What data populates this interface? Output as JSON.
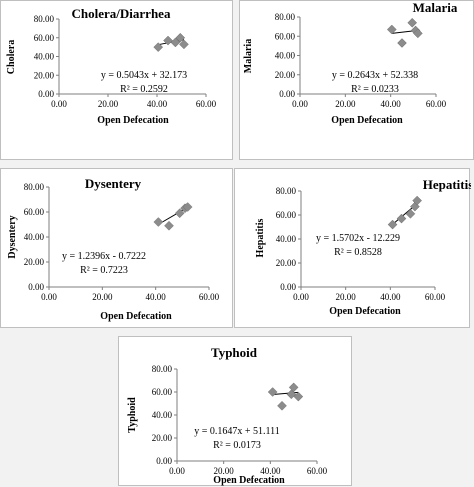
{
  "chart_data": [
    {
      "type": "scatter",
      "title": "Cholera/Diarrhea",
      "xlabel": "Open Defecation",
      "ylabel": "Cholera",
      "xlim": [
        0,
        60
      ],
      "ylim": [
        0,
        80
      ],
      "xticks": [
        "0.00",
        "20.00",
        "40.00",
        "60.00"
      ],
      "yticks": [
        "0.00",
        "20.00",
        "40.00",
        "60.00",
        "80.00"
      ],
      "points": [
        {
          "x": 40.5,
          "y": 50
        },
        {
          "x": 44.5,
          "y": 57
        },
        {
          "x": 47.5,
          "y": 55
        },
        {
          "x": 49.5,
          "y": 60
        },
        {
          "x": 51,
          "y": 53
        }
      ],
      "trendline": {
        "slope": 0.5043,
        "intercept": 32.173,
        "x_range": [
          40.5,
          51
        ]
      },
      "equation": "y = 0.5043x + 32.173",
      "r2": "R² = 0.2592"
    },
    {
      "type": "scatter",
      "title": "Malaria",
      "xlabel": "Open Defecation",
      "ylabel": "Malaria",
      "xlim": [
        0,
        60
      ],
      "ylim": [
        0,
        80
      ],
      "xticks": [
        "0.00",
        "20.00",
        "40.00",
        "60.00"
      ],
      "yticks": [
        "0.00",
        "20.00",
        "40.00",
        "60.00",
        "80.00"
      ],
      "points": [
        {
          "x": 40.5,
          "y": 67
        },
        {
          "x": 45,
          "y": 53
        },
        {
          "x": 49.5,
          "y": 74
        },
        {
          "x": 51,
          "y": 66
        },
        {
          "x": 52,
          "y": 63
        }
      ],
      "trendline": {
        "slope": 0.2643,
        "intercept": 52.338,
        "x_range": [
          40.5,
          52
        ]
      },
      "equation": "y = 0.2643x + 52.338",
      "r2": "R² = 0.0233"
    },
    {
      "type": "scatter",
      "title": "Dysentery",
      "xlabel": "Open Defecation",
      "ylabel": "Dysentery",
      "xlim": [
        0,
        60
      ],
      "ylim": [
        0,
        80
      ],
      "xticks": [
        "0.00",
        "20.00",
        "40.00",
        "60.00"
      ],
      "yticks": [
        "0.00",
        "20.00",
        "40.00",
        "60.00",
        "80.00"
      ],
      "points": [
        {
          "x": 41,
          "y": 52
        },
        {
          "x": 45,
          "y": 49
        },
        {
          "x": 49,
          "y": 59
        },
        {
          "x": 51,
          "y": 63
        },
        {
          "x": 52,
          "y": 64
        }
      ],
      "trendline": {
        "slope": 1.2396,
        "intercept": -0.7222,
        "x_range": [
          41,
          52
        ]
      },
      "equation": "y = 1.2396x - 0.7222",
      "r2": "R² = 0.7223"
    },
    {
      "type": "scatter",
      "title": "Hepatitis",
      "xlabel": "Open Defecation",
      "ylabel": "Hepatitis",
      "xlim": [
        0,
        60
      ],
      "ylim": [
        0,
        80
      ],
      "xticks": [
        "0.00",
        "20.00",
        "40.00",
        "60.00"
      ],
      "yticks": [
        "0.00",
        "20.00",
        "40.00",
        "60.00",
        "80.00"
      ],
      "points": [
        {
          "x": 41,
          "y": 52
        },
        {
          "x": 45,
          "y": 57
        },
        {
          "x": 49,
          "y": 61
        },
        {
          "x": 51,
          "y": 67
        },
        {
          "x": 52,
          "y": 72
        }
      ],
      "trendline": {
        "slope": 1.5702,
        "intercept": -12.229,
        "x_range": [
          41,
          52
        ]
      },
      "equation": "y = 1.5702x - 12.229",
      "r2": "R² = 0.8528"
    },
    {
      "type": "scatter",
      "title": "Typhoid",
      "xlabel": "Open Defecation",
      "ylabel": "Typhoid",
      "xlim": [
        0,
        60
      ],
      "ylim": [
        0,
        80
      ],
      "xticks": [
        "0.00",
        "20.00",
        "40.00",
        "60.00"
      ],
      "yticks": [
        "0.00",
        "20.00",
        "40.00",
        "60.00",
        "80.00"
      ],
      "points": [
        {
          "x": 41,
          "y": 60
        },
        {
          "x": 45,
          "y": 48
        },
        {
          "x": 49,
          "y": 58
        },
        {
          "x": 50,
          "y": 64
        },
        {
          "x": 52,
          "y": 56
        }
      ],
      "trendline": {
        "slope": 0.1647,
        "intercept": 51.111,
        "x_range": [
          41,
          52
        ]
      },
      "equation": "y = 0.1647x + 51.111",
      "r2": "R² = 0.0173"
    }
  ]
}
